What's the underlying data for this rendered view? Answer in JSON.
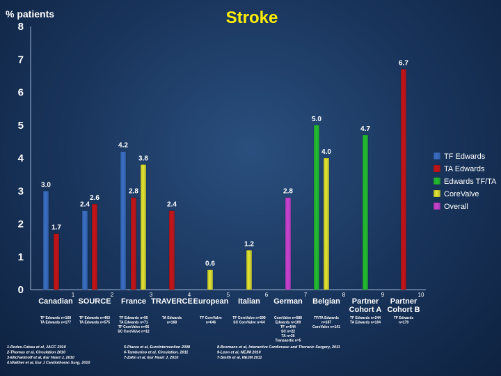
{
  "chart_data": {
    "type": "bar",
    "title": "Stroke",
    "ylabel": "% patients",
    "ylim": [
      0,
      8
    ],
    "yticks": [
      "0",
      "1",
      "2",
      "3",
      "4",
      "5",
      "6",
      "7",
      "8"
    ],
    "grid": false,
    "legend_position": "right",
    "series_legend": [
      {
        "name": "TF Edwards",
        "color": "#3a6fc4"
      },
      {
        "name": "TA Edwards",
        "color": "#cc1111"
      },
      {
        "name": "Edwards TF/TA",
        "color": "#22c02a"
      },
      {
        "name": "CoreValve",
        "color": "#e6e62a"
      },
      {
        "name": "Overall",
        "color": "#d040d0"
      }
    ],
    "groups": [
      {
        "label": "Canadian",
        "ref": "1",
        "notes": [
          "TF Edwards n=168",
          "TA Edwards n=177"
        ],
        "bars": [
          {
            "series": "TF Edwards",
            "value": 3.0,
            "label": "3.0"
          },
          {
            "series": "TA Edwards",
            "value": 1.7,
            "label": "1.7"
          }
        ]
      },
      {
        "label": "SOURCE",
        "ref": "2",
        "notes": [
          "TF Edwards n=463",
          "TA Edwards n=575"
        ],
        "bars": [
          {
            "series": "TF Edwards",
            "value": 2.4,
            "label": "2.4"
          },
          {
            "series": "TA Edwards",
            "value": 2.6,
            "label": "2.6"
          }
        ]
      },
      {
        "label": "France",
        "ref": "3",
        "notes": [
          "TF Edwards n=95",
          "TA Edwards n=71",
          "TF CoreValve n=66",
          "SC CoreValve n=12"
        ],
        "bars": [
          {
            "series": "TF Edwards",
            "value": 4.2,
            "label": "4.2"
          },
          {
            "series": "TA Edwards",
            "value": 2.8,
            "label": "2.8"
          },
          {
            "series": "CoreValve",
            "value": 3.8,
            "label": "3.8"
          }
        ]
      },
      {
        "label": "TRAVERCE",
        "ref": "4",
        "notes": [
          "TA Edwards",
          "n=168"
        ],
        "bars": [
          {
            "series": "TA Edwards",
            "value": 2.4,
            "label": "2.4"
          }
        ]
      },
      {
        "label": "European",
        "ref": "5",
        "notes": [
          "TF CoreValve",
          "n=646"
        ],
        "bars": [
          {
            "series": "CoreValve",
            "value": 0.6,
            "label": "0.6"
          }
        ]
      },
      {
        "label": "Italian",
        "ref": "6",
        "notes": [
          "TF CoreValve n=599",
          "SC CoreValve n=64"
        ],
        "bars": [
          {
            "series": "CoreValve",
            "value": 1.2,
            "label": "1.2"
          }
        ]
      },
      {
        "label": "German",
        "ref": "7",
        "notes": [
          "CoreValve n=588",
          "Edwards n=109",
          "TF n=644",
          "SC n=22",
          "TA n=26",
          "Transaortic n=5"
        ],
        "bars": [
          {
            "series": "Overall",
            "value": 2.8,
            "label": "2.8"
          }
        ]
      },
      {
        "label": "Belgian",
        "ref": "8",
        "notes": [
          "TF/TA Edwards",
          "n=187",
          "CoreValve n=141"
        ],
        "bars": [
          {
            "series": "Edwards TF/TA",
            "value": 5.0,
            "label": "5.0"
          },
          {
            "series": "CoreValve",
            "value": 4.0,
            "label": "4.0"
          }
        ]
      },
      {
        "label": "Partner Cohort A",
        "label_lines": [
          "Partner",
          "Cohort A"
        ],
        "ref": "9",
        "notes": [
          "TF Edwards n=244",
          "TA Edwards n=104"
        ],
        "bars": [
          {
            "series": "Edwards TF/TA",
            "value": 4.7,
            "label": "4.7"
          }
        ]
      },
      {
        "label": "Partner Cohort B",
        "label_lines": [
          "Partner",
          "Cohort B"
        ],
        "ref": "10",
        "notes": [
          "TF Edwards",
          "n=179"
        ],
        "bars": [
          {
            "series": "TA Edwards",
            "value": 6.7,
            "label": "6.7"
          }
        ]
      }
    ]
  },
  "references": [
    "1-Rodes-Cabau et al, JACC 2010",
    "2-Thomas et al, Circulation 2010",
    "3-Eltchaninoff et al, Eur Heart J, 2010",
    "4-Walther et al, Eur J Cardiothorac Surg, 2010",
    "5-Piazza et al, EuroIntervention 2008",
    "6-Tamburino et al, Circulation, 2011",
    "7-Zahn et al, Eur Heart J, 2010",
    "8-Bosmans et al, Interactive Cardiovasc and Thoracic Surgery, 2011",
    "9-Leon et al, NEJM 2010",
    "7-Smith et al, NEJM 2011"
  ]
}
